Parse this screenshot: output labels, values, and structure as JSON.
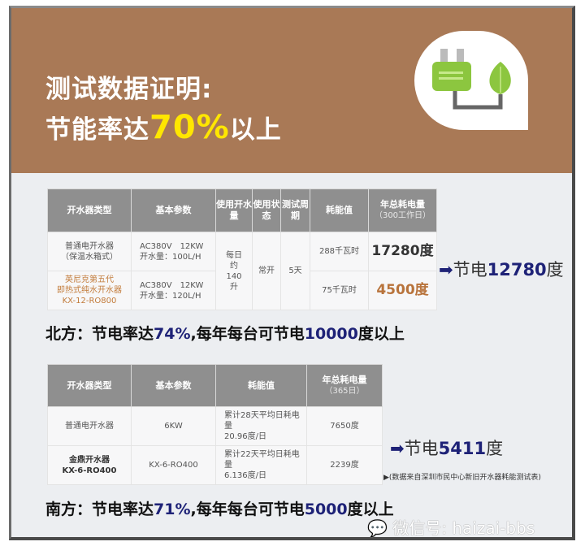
{
  "header": {
    "line1": "测试数据证明:",
    "line2_pre": "节能率达",
    "line2_hl": "70%",
    "line2_post": "以上",
    "icon": "plug-leaf-icon"
  },
  "table1": {
    "headers": [
      "开水器类型",
      "基本参数",
      "使用开水量",
      "使用状态",
      "测试周期",
      "耗能值",
      "年总耗电量"
    ],
    "header_sub": "（300工作日）",
    "rows": [
      {
        "type1": "普通电开水器",
        "type2": "（保温水箱式）",
        "param1": "AC380V　12KW",
        "param2": "开水量：100L/H",
        "energy": "288千瓦时",
        "annual": "17280度"
      },
      {
        "type1": "英尼克第五代",
        "type2": "即热式纯水开水器",
        "type3": "KX-12-RO800",
        "param1": "AC380V　12KW",
        "param2": "开水量：120L/H",
        "energy": "75千瓦时",
        "annual": "4500度"
      }
    ],
    "usage": "每日约140升",
    "state": "常开",
    "period": "5天"
  },
  "save1": {
    "pre": "节电",
    "num": "12780",
    "post": "度"
  },
  "north": {
    "pre": "北方：节电率达",
    "pct": "74%",
    "mid": ",每年每台可节电",
    "num": "10000",
    "post": "度以上"
  },
  "table2": {
    "headers": [
      "开水器类型",
      "基本参数",
      "耗能值",
      "年总耗电量"
    ],
    "header_sub": "（365日）",
    "rows": [
      {
        "type1": "普通电开水器",
        "param": "6KW",
        "energy1": "累计28天平均日耗电量",
        "energy2": "20.96度/日",
        "annual": "7650度"
      },
      {
        "type1": "金鼎开水器",
        "type2": "KX-6-RO400",
        "param": "KX-6-RO400",
        "energy1": "累计22天平均日耗电量",
        "energy2": "6.136度/日",
        "annual": "2239度"
      }
    ]
  },
  "save2": {
    "pre": "节电",
    "num": "5411",
    "post": "度"
  },
  "note": "▶(数据来自深圳市民中心新旧开水器耗能测试表)",
  "south": {
    "pre": "南方：节电率达",
    "pct": "71%",
    "mid": ",每年每台可节电",
    "num": "5000",
    "post": "度以上"
  },
  "watermark": "微信号: haizai-bbs",
  "colors": {
    "header_bg": "#a97956",
    "highlight": "#ffe600",
    "accent_navy": "#1e2277",
    "table_header": "#8f8f8f"
  }
}
